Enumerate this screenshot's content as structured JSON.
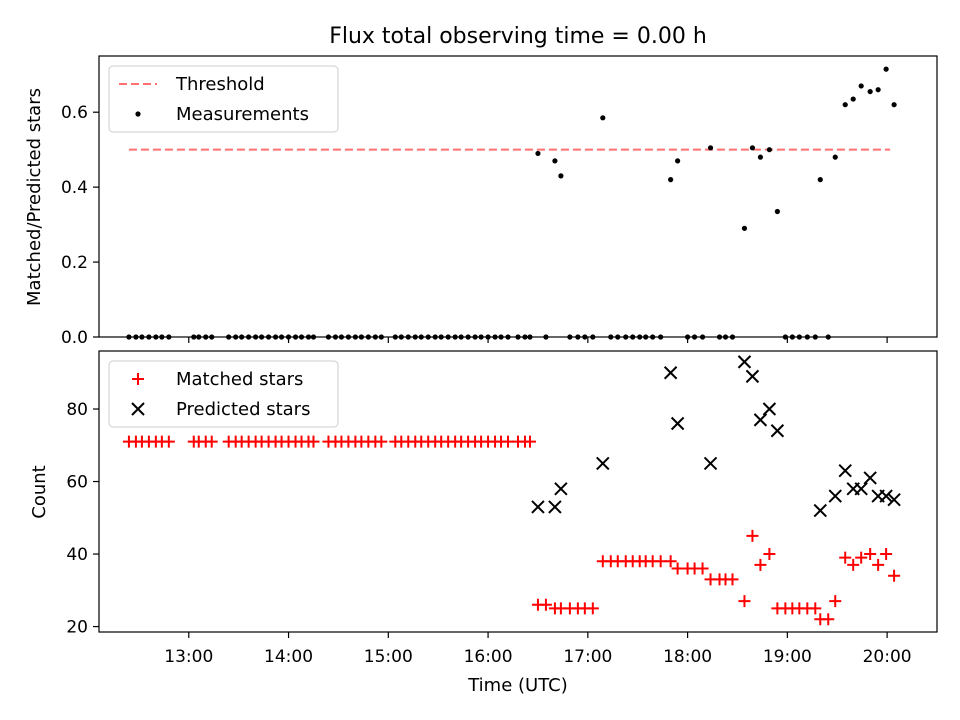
{
  "title": "Flux total observing time = 0.00 h",
  "colors": {
    "threshold": "#ff7070",
    "measurement": "#000000",
    "matched": "#ff0000",
    "predicted": "#000000",
    "axis": "#000000"
  },
  "chart_data": [
    {
      "type": "scatter",
      "name": "ratio-panel",
      "ylabel": "Matched/Predicted stars",
      "xlabel": "",
      "xlim": [
        12.1,
        20.5
      ],
      "ylim": [
        0,
        0.75
      ],
      "yticks": [
        0,
        0.2,
        0.4,
        0.6
      ],
      "ytick_labels": [
        "0.0",
        "0.2",
        "0.4",
        "0.6"
      ],
      "legend_position": "upper-left",
      "legend": [
        {
          "label": "Threshold",
          "kind": "dashed-line"
        },
        {
          "label": "Measurements",
          "kind": "dot"
        }
      ],
      "threshold": {
        "label": "Threshold",
        "x": [
          12.4,
          20.03
        ],
        "y": 0.5
      },
      "series": [
        {
          "name": "Measurements",
          "points": [
            [
              12.4,
              0
            ],
            [
              12.47,
              0
            ],
            [
              12.53,
              0
            ],
            [
              12.6,
              0
            ],
            [
              12.67,
              0
            ],
            [
              12.73,
              0
            ],
            [
              12.8,
              0
            ],
            [
              13.05,
              0
            ],
            [
              13.1,
              0
            ],
            [
              13.17,
              0
            ],
            [
              13.23,
              0
            ],
            [
              13.4,
              0
            ],
            [
              13.47,
              0
            ],
            [
              13.53,
              0
            ],
            [
              13.6,
              0
            ],
            [
              13.67,
              0
            ],
            [
              13.73,
              0
            ],
            [
              13.8,
              0
            ],
            [
              13.87,
              0
            ],
            [
              13.93,
              0
            ],
            [
              14.0,
              0
            ],
            [
              14.07,
              0
            ],
            [
              14.13,
              0
            ],
            [
              14.2,
              0
            ],
            [
              14.25,
              0
            ],
            [
              14.4,
              0
            ],
            [
              14.47,
              0
            ],
            [
              14.53,
              0
            ],
            [
              14.6,
              0
            ],
            [
              14.67,
              0
            ],
            [
              14.73,
              0
            ],
            [
              14.8,
              0
            ],
            [
              14.87,
              0
            ],
            [
              14.93,
              0
            ],
            [
              15.07,
              0
            ],
            [
              15.13,
              0
            ],
            [
              15.2,
              0
            ],
            [
              15.27,
              0
            ],
            [
              15.33,
              0
            ],
            [
              15.4,
              0
            ],
            [
              15.47,
              0
            ],
            [
              15.53,
              0
            ],
            [
              15.6,
              0
            ],
            [
              15.67,
              0
            ],
            [
              15.73,
              0
            ],
            [
              15.8,
              0
            ],
            [
              15.87,
              0
            ],
            [
              15.93,
              0
            ],
            [
              16.0,
              0
            ],
            [
              16.07,
              0
            ],
            [
              16.13,
              0
            ],
            [
              16.2,
              0
            ],
            [
              16.3,
              0
            ],
            [
              16.37,
              0
            ],
            [
              16.42,
              0
            ],
            [
              16.5,
              0.49
            ],
            [
              16.58,
              0
            ],
            [
              16.67,
              0.47
            ],
            [
              16.73,
              0.43
            ],
            [
              16.82,
              0
            ],
            [
              16.9,
              0
            ],
            [
              16.97,
              0
            ],
            [
              17.05,
              0
            ],
            [
              17.15,
              0.585
            ],
            [
              17.23,
              0
            ],
            [
              17.3,
              0
            ],
            [
              17.38,
              0
            ],
            [
              17.45,
              0
            ],
            [
              17.52,
              0
            ],
            [
              17.58,
              0
            ],
            [
              17.65,
              0
            ],
            [
              17.73,
              0
            ],
            [
              17.83,
              0.42
            ],
            [
              17.9,
              0.47
            ],
            [
              18.0,
              0
            ],
            [
              18.07,
              0
            ],
            [
              18.15,
              0
            ],
            [
              18.23,
              0.505
            ],
            [
              18.32,
              0
            ],
            [
              18.38,
              0
            ],
            [
              18.45,
              0
            ],
            [
              18.57,
              0.29
            ],
            [
              18.65,
              0.505
            ],
            [
              18.73,
              0.48
            ],
            [
              18.82,
              0.5
            ],
            [
              18.9,
              0.335
            ],
            [
              18.98,
              0
            ],
            [
              19.05,
              0
            ],
            [
              19.12,
              0
            ],
            [
              19.2,
              0
            ],
            [
              19.28,
              0
            ],
            [
              19.33,
              0.42
            ],
            [
              19.41,
              0
            ],
            [
              19.48,
              0.48
            ],
            [
              19.58,
              0.62
            ],
            [
              19.66,
              0.635
            ],
            [
              19.74,
              0.67
            ],
            [
              19.83,
              0.655
            ],
            [
              19.91,
              0.66
            ],
            [
              19.99,
              0.715
            ],
            [
              20.07,
              0.62
            ]
          ]
        }
      ]
    },
    {
      "type": "scatter",
      "name": "count-panel",
      "ylabel": "Count",
      "xlabel": "Time (UTC)",
      "xlim": [
        12.1,
        20.5
      ],
      "ylim": [
        18.5,
        96
      ],
      "yticks": [
        20,
        40,
        60,
        80
      ],
      "ytick_labels": [
        "20",
        "40",
        "60",
        "80"
      ],
      "xticks": [
        13,
        14,
        15,
        16,
        17,
        18,
        19,
        20
      ],
      "xtick_labels": [
        "13:00",
        "14:00",
        "15:00",
        "16:00",
        "17:00",
        "18:00",
        "19:00",
        "20:00"
      ],
      "legend_position": "upper-left",
      "legend": [
        {
          "label": "Matched stars",
          "kind": "plus"
        },
        {
          "label": "Predicted stars",
          "kind": "cross"
        }
      ],
      "series": [
        {
          "name": "Matched stars",
          "marker": "plus",
          "points": [
            [
              12.4,
              71
            ],
            [
              12.47,
              71
            ],
            [
              12.53,
              71
            ],
            [
              12.6,
              71
            ],
            [
              12.67,
              71
            ],
            [
              12.73,
              71
            ],
            [
              12.8,
              71
            ],
            [
              13.05,
              71
            ],
            [
              13.1,
              71
            ],
            [
              13.17,
              71
            ],
            [
              13.23,
              71
            ],
            [
              13.4,
              71
            ],
            [
              13.47,
              71
            ],
            [
              13.53,
              71
            ],
            [
              13.6,
              71
            ],
            [
              13.67,
              71
            ],
            [
              13.73,
              71
            ],
            [
              13.8,
              71
            ],
            [
              13.87,
              71
            ],
            [
              13.93,
              71
            ],
            [
              14.0,
              71
            ],
            [
              14.07,
              71
            ],
            [
              14.13,
              71
            ],
            [
              14.2,
              71
            ],
            [
              14.25,
              71
            ],
            [
              14.4,
              71
            ],
            [
              14.47,
              71
            ],
            [
              14.53,
              71
            ],
            [
              14.6,
              71
            ],
            [
              14.67,
              71
            ],
            [
              14.73,
              71
            ],
            [
              14.8,
              71
            ],
            [
              14.87,
              71
            ],
            [
              14.93,
              71
            ],
            [
              15.07,
              71
            ],
            [
              15.13,
              71
            ],
            [
              15.2,
              71
            ],
            [
              15.27,
              71
            ],
            [
              15.33,
              71
            ],
            [
              15.4,
              71
            ],
            [
              15.47,
              71
            ],
            [
              15.53,
              71
            ],
            [
              15.6,
              71
            ],
            [
              15.67,
              71
            ],
            [
              15.73,
              71
            ],
            [
              15.8,
              71
            ],
            [
              15.87,
              71
            ],
            [
              15.93,
              71
            ],
            [
              16.0,
              71
            ],
            [
              16.07,
              71
            ],
            [
              16.13,
              71
            ],
            [
              16.2,
              71
            ],
            [
              16.3,
              71
            ],
            [
              16.37,
              71
            ],
            [
              16.42,
              71
            ],
            [
              16.5,
              26
            ],
            [
              16.58,
              26
            ],
            [
              16.67,
              25
            ],
            [
              16.73,
              25
            ],
            [
              16.82,
              25
            ],
            [
              16.9,
              25
            ],
            [
              16.97,
              25
            ],
            [
              17.05,
              25
            ],
            [
              17.15,
              38
            ],
            [
              17.23,
              38
            ],
            [
              17.3,
              38
            ],
            [
              17.38,
              38
            ],
            [
              17.45,
              38
            ],
            [
              17.52,
              38
            ],
            [
              17.58,
              38
            ],
            [
              17.65,
              38
            ],
            [
              17.73,
              38
            ],
            [
              17.83,
              38
            ],
            [
              17.9,
              36
            ],
            [
              18.0,
              36
            ],
            [
              18.07,
              36
            ],
            [
              18.15,
              36
            ],
            [
              18.23,
              33
            ],
            [
              18.32,
              33
            ],
            [
              18.38,
              33
            ],
            [
              18.45,
              33
            ],
            [
              18.57,
              27
            ],
            [
              18.65,
              45
            ],
            [
              18.73,
              37
            ],
            [
              18.82,
              40
            ],
            [
              18.9,
              25
            ],
            [
              18.98,
              25
            ],
            [
              19.05,
              25
            ],
            [
              19.12,
              25
            ],
            [
              19.2,
              25
            ],
            [
              19.28,
              25
            ],
            [
              19.33,
              22
            ],
            [
              19.41,
              22
            ],
            [
              19.48,
              27
            ],
            [
              19.58,
              39
            ],
            [
              19.66,
              37
            ],
            [
              19.74,
              39
            ],
            [
              19.83,
              40
            ],
            [
              19.91,
              37
            ],
            [
              19.99,
              40
            ],
            [
              20.07,
              34
            ]
          ]
        },
        {
          "name": "Predicted stars",
          "marker": "cross",
          "points": [
            [
              16.5,
              53
            ],
            [
              16.67,
              53
            ],
            [
              16.73,
              58
            ],
            [
              17.15,
              65
            ],
            [
              17.83,
              90
            ],
            [
              17.9,
              76
            ],
            [
              18.23,
              65
            ],
            [
              18.57,
              93
            ],
            [
              18.65,
              89
            ],
            [
              18.73,
              77
            ],
            [
              18.82,
              80
            ],
            [
              18.9,
              74
            ],
            [
              19.33,
              52
            ],
            [
              19.48,
              56
            ],
            [
              19.58,
              63
            ],
            [
              19.66,
              58
            ],
            [
              19.74,
              58
            ],
            [
              19.83,
              61
            ],
            [
              19.91,
              56
            ],
            [
              19.99,
              56
            ],
            [
              20.07,
              55
            ]
          ]
        }
      ]
    }
  ]
}
